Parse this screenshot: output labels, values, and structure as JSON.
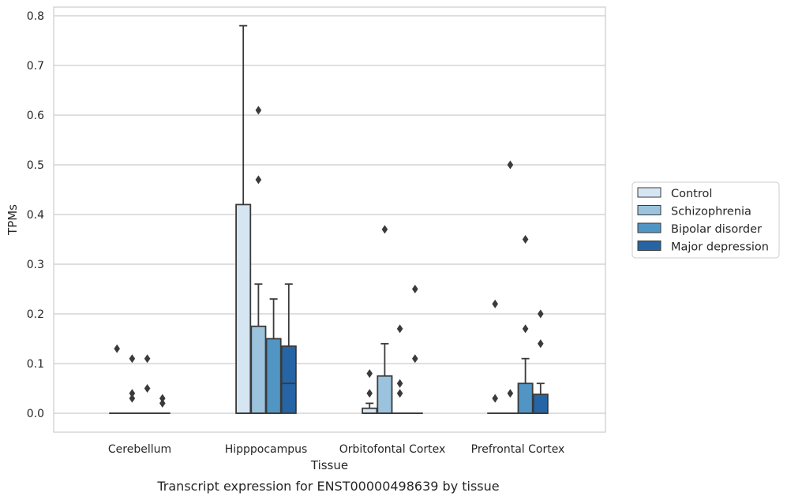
{
  "caption": "Transcript expression for ENST00000498639 by tissue",
  "chart_data": {
    "type": "box",
    "title": "",
    "xlabel": "Tissue",
    "ylabel": "TPMs",
    "ylim": [
      -0.04,
      0.82
    ],
    "yticks": [
      "0.0",
      "0.1",
      "0.2",
      "0.3",
      "0.4",
      "0.5",
      "0.6",
      "0.7",
      "0.8"
    ],
    "grid": true,
    "legend_position": "right",
    "categories": [
      "Cerebellum",
      "Hipppocampus",
      "Orbitofontal Cortex",
      "Prefrontal Cortex"
    ],
    "series": [
      {
        "name": "Control",
        "color": "#d6e5f2",
        "boxes": [
          {
            "q1": 0,
            "median": 0,
            "q3": 0,
            "whisker_low": 0,
            "whisker_high": 0,
            "outliers": [
              0.13
            ]
          },
          {
            "q1": 0,
            "median": 0,
            "q3": 0.42,
            "whisker_low": 0,
            "whisker_high": 0.78,
            "outliers": []
          },
          {
            "q1": 0,
            "median": 0,
            "q3": 0.01,
            "whisker_low": 0,
            "whisker_high": 0.02,
            "outliers": [
              0.04,
              0.08
            ]
          },
          {
            "q1": 0,
            "median": 0,
            "q3": 0,
            "whisker_low": 0,
            "whisker_high": 0,
            "outliers": [
              0.03,
              0.22
            ]
          }
        ]
      },
      {
        "name": "Schizophrenia",
        "color": "#9bc3dd",
        "boxes": [
          {
            "q1": 0,
            "median": 0,
            "q3": 0,
            "whisker_low": 0,
            "whisker_high": 0,
            "outliers": [
              0.03,
              0.04,
              0.11
            ]
          },
          {
            "q1": 0,
            "median": 0,
            "q3": 0.175,
            "whisker_low": 0,
            "whisker_high": 0.26,
            "outliers": [
              0.47,
              0.61
            ]
          },
          {
            "q1": 0,
            "median": 0,
            "q3": 0.075,
            "whisker_low": 0,
            "whisker_high": 0.14,
            "outliers": [
              0.37
            ]
          },
          {
            "q1": 0,
            "median": 0,
            "q3": 0,
            "whisker_low": 0,
            "whisker_high": 0,
            "outliers": [
              0.04,
              0.5
            ]
          }
        ]
      },
      {
        "name": "Bipolar disorder",
        "color": "#5195c4",
        "boxes": [
          {
            "q1": 0,
            "median": 0,
            "q3": 0,
            "whisker_low": 0,
            "whisker_high": 0,
            "outliers": [
              0.05,
              0.11
            ]
          },
          {
            "q1": 0,
            "median": 0,
            "q3": 0.15,
            "whisker_low": 0,
            "whisker_high": 0.23,
            "outliers": []
          },
          {
            "q1": 0,
            "median": 0,
            "q3": 0,
            "whisker_low": 0,
            "whisker_high": 0,
            "outliers": [
              0.04,
              0.06,
              0.17
            ]
          },
          {
            "q1": 0,
            "median": 0,
            "q3": 0.06,
            "whisker_low": 0,
            "whisker_high": 0.11,
            "outliers": [
              0.17,
              0.35
            ]
          }
        ]
      },
      {
        "name": "Major depression",
        "color": "#2565a6",
        "boxes": [
          {
            "q1": 0,
            "median": 0,
            "q3": 0,
            "whisker_low": 0,
            "whisker_high": 0,
            "outliers": [
              0.02,
              0.03
            ]
          },
          {
            "q1": 0,
            "median": 0.06,
            "q3": 0.135,
            "whisker_low": 0,
            "whisker_high": 0.26,
            "outliers": []
          },
          {
            "q1": 0,
            "median": 0,
            "q3": 0,
            "whisker_low": 0,
            "whisker_high": 0,
            "outliers": [
              0.11,
              0.25
            ]
          },
          {
            "q1": 0,
            "median": 0,
            "q3": 0.038,
            "whisker_low": 0,
            "whisker_high": 0.06,
            "outliers": [
              0.14,
              0.2
            ]
          }
        ]
      }
    ]
  }
}
